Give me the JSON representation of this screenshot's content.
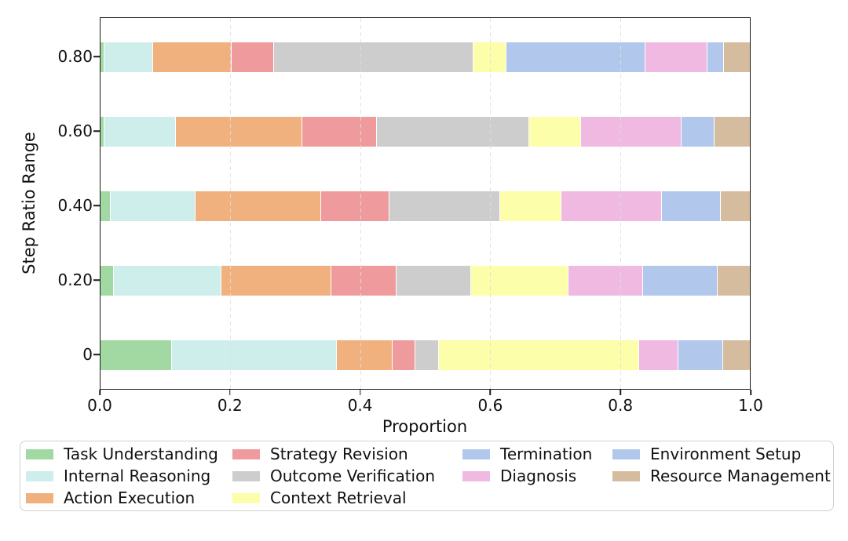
{
  "chart_data": {
    "type": "bar",
    "variant": "horizontal-stacked",
    "title": "",
    "xlabel": "Proportion",
    "ylabel": "Step Ratio Range",
    "xlim": [
      0,
      1
    ],
    "xtick_labels": [
      "0.0",
      "0.2",
      "0.4",
      "0.6",
      "0.8",
      "1.0"
    ],
    "grid_x": [
      0.2,
      0.4,
      0.6,
      0.8
    ],
    "grid_style": "dashed-vertical",
    "legend_position": "bottom",
    "categories": [
      "0.80",
      "0.60",
      "0.40",
      "0.20",
      "0"
    ],
    "series": [
      {
        "name": "Task Understanding",
        "color": "#a2d9a2",
        "values": [
          0.005,
          0.005,
          0.015,
          0.02,
          0.11
        ]
      },
      {
        "name": "Internal Reasoning",
        "color": "#cdeeea",
        "values": [
          0.075,
          0.11,
          0.13,
          0.165,
          0.255
        ]
      },
      {
        "name": "Action Execution",
        "color": "#f1b17f",
        "values": [
          0.12,
          0.195,
          0.195,
          0.17,
          0.085
        ]
      },
      {
        "name": "Strategy Revision",
        "color": "#ef9b9d",
        "values": [
          0.065,
          0.115,
          0.105,
          0.1,
          0.035
        ]
      },
      {
        "name": "Outcome Verification",
        "color": "#cdcdcd",
        "values": [
          0.31,
          0.235,
          0.17,
          0.115,
          0.035
        ]
      },
      {
        "name": "Context Retrieval",
        "color": "#fdfeaa",
        "values": [
          0.05,
          0.08,
          0.095,
          0.15,
          0.31
        ]
      },
      {
        "name": "Termination",
        "color": "#b1c8ec",
        "values": [
          0.215,
          0,
          0,
          0,
          0
        ]
      },
      {
        "name": "Diagnosis",
        "color": "#efb9e2",
        "values": [
          0.095,
          0.155,
          0.155,
          0.115,
          0.06
        ]
      },
      {
        "name": "Environment Setup",
        "color": "#b1c8ec",
        "values": [
          0.025,
          0.05,
          0.09,
          0.115,
          0.068
        ]
      },
      {
        "name": "Resource Management",
        "color": "#d6bc9f",
        "values": [
          0.04,
          0.055,
          0.045,
          0.05,
          0.042
        ]
      }
    ]
  },
  "legend": {
    "columns": [
      [
        "Task Understanding",
        "Internal Reasoning",
        "Action Execution"
      ],
      [
        "Strategy Revision",
        "Outcome Verification",
        "Context Retrieval"
      ],
      [
        "Termination",
        "Diagnosis"
      ],
      [
        "Environment Setup",
        "Resource Management"
      ]
    ]
  }
}
